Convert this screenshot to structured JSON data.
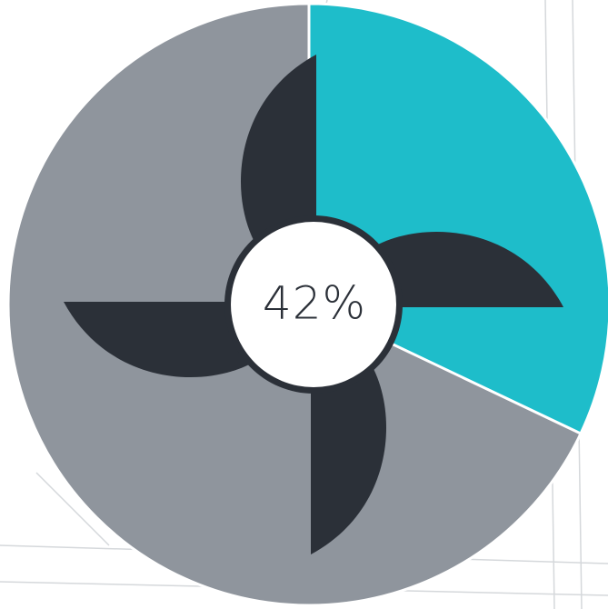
{
  "badge": {
    "label": "42%"
  }
}
